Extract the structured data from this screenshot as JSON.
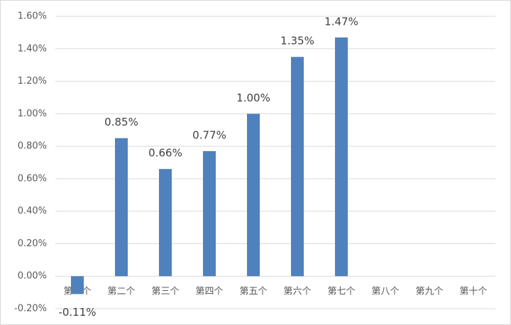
{
  "chart_data": {
    "type": "bar",
    "categories": [
      "第一个",
      "第二个",
      "第三个",
      "第四个",
      "第五个",
      "第六个",
      "第七个",
      "第八个",
      "第九个",
      "第十个"
    ],
    "values": [
      -0.11,
      0.85,
      0.66,
      0.77,
      1.0,
      1.35,
      1.47,
      null,
      null,
      null
    ],
    "value_labels": [
      "-0.11%",
      "0.85%",
      "0.66%",
      "0.77%",
      "1.00%",
      "1.35%",
      "1.47%",
      null,
      null,
      null
    ],
    "color": "#4f81bd",
    "ylim": [
      -0.2,
      1.6
    ],
    "yticks": [
      {
        "value": -0.2,
        "label": "-0.20%"
      },
      {
        "value": 0,
        "label": "0.00%"
      },
      {
        "value": 0.2,
        "label": "0.20%"
      },
      {
        "value": 0.4,
        "label": "0.40%"
      },
      {
        "value": 0.6,
        "label": "0.60%"
      },
      {
        "value": 0.8,
        "label": "0.80%"
      },
      {
        "value": 1.0,
        "label": "1.00%"
      },
      {
        "value": 1.2,
        "label": "1.20%"
      },
      {
        "value": 1.4,
        "label": "1.40%"
      },
      {
        "value": 1.6,
        "label": "1.60%"
      }
    ],
    "grid": true
  }
}
